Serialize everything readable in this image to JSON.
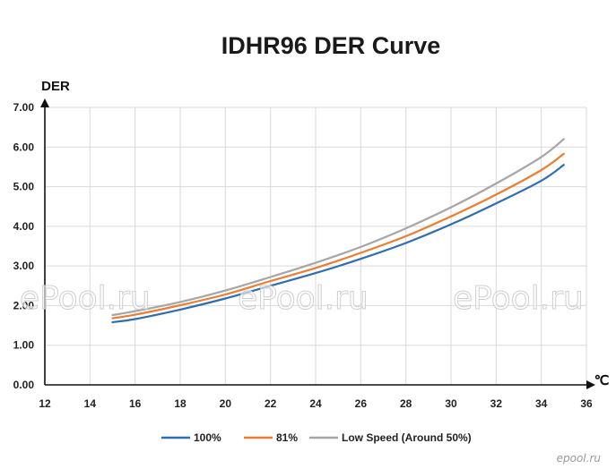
{
  "chart_data": {
    "type": "line",
    "title": "IDHR96  DER Curve",
    "ylabel": "DER",
    "xlabel": "℃",
    "xlim": [
      12,
      36
    ],
    "ylim": [
      0,
      7
    ],
    "x_ticks": [
      "12",
      "14",
      "16",
      "18",
      "20",
      "22",
      "24",
      "26",
      "28",
      "30",
      "32",
      "34",
      "36"
    ],
    "y_ticks": [
      "0.00",
      "1.00",
      "2.00",
      "3.00",
      "4.00",
      "5.00",
      "6.00",
      "7.00"
    ],
    "grid": true,
    "legend_position": "bottom",
    "x": [
      15,
      16,
      18,
      20,
      22,
      24,
      26,
      28,
      30,
      32,
      34,
      35
    ],
    "series": [
      {
        "name": "100%",
        "color": "#2e6db4",
        "values": [
          1.58,
          1.66,
          1.9,
          2.18,
          2.5,
          2.82,
          3.18,
          3.58,
          4.05,
          4.58,
          5.15,
          5.55
        ]
      },
      {
        "name": "81%",
        "color": "#ed7d31",
        "values": [
          1.68,
          1.77,
          2.01,
          2.28,
          2.62,
          2.95,
          3.33,
          3.75,
          4.25,
          4.8,
          5.42,
          5.83
        ]
      },
      {
        "name": "Low Speed (Around 50%)",
        "color": "#a6a6a6",
        "values": [
          1.76,
          1.86,
          2.09,
          2.38,
          2.72,
          3.08,
          3.48,
          3.95,
          4.48,
          5.08,
          5.75,
          6.2
        ]
      }
    ]
  },
  "watermarks": [
    "ePool.ru",
    "ePool.ru",
    "ePool.ru"
  ],
  "corner_mark": "epool.ru"
}
